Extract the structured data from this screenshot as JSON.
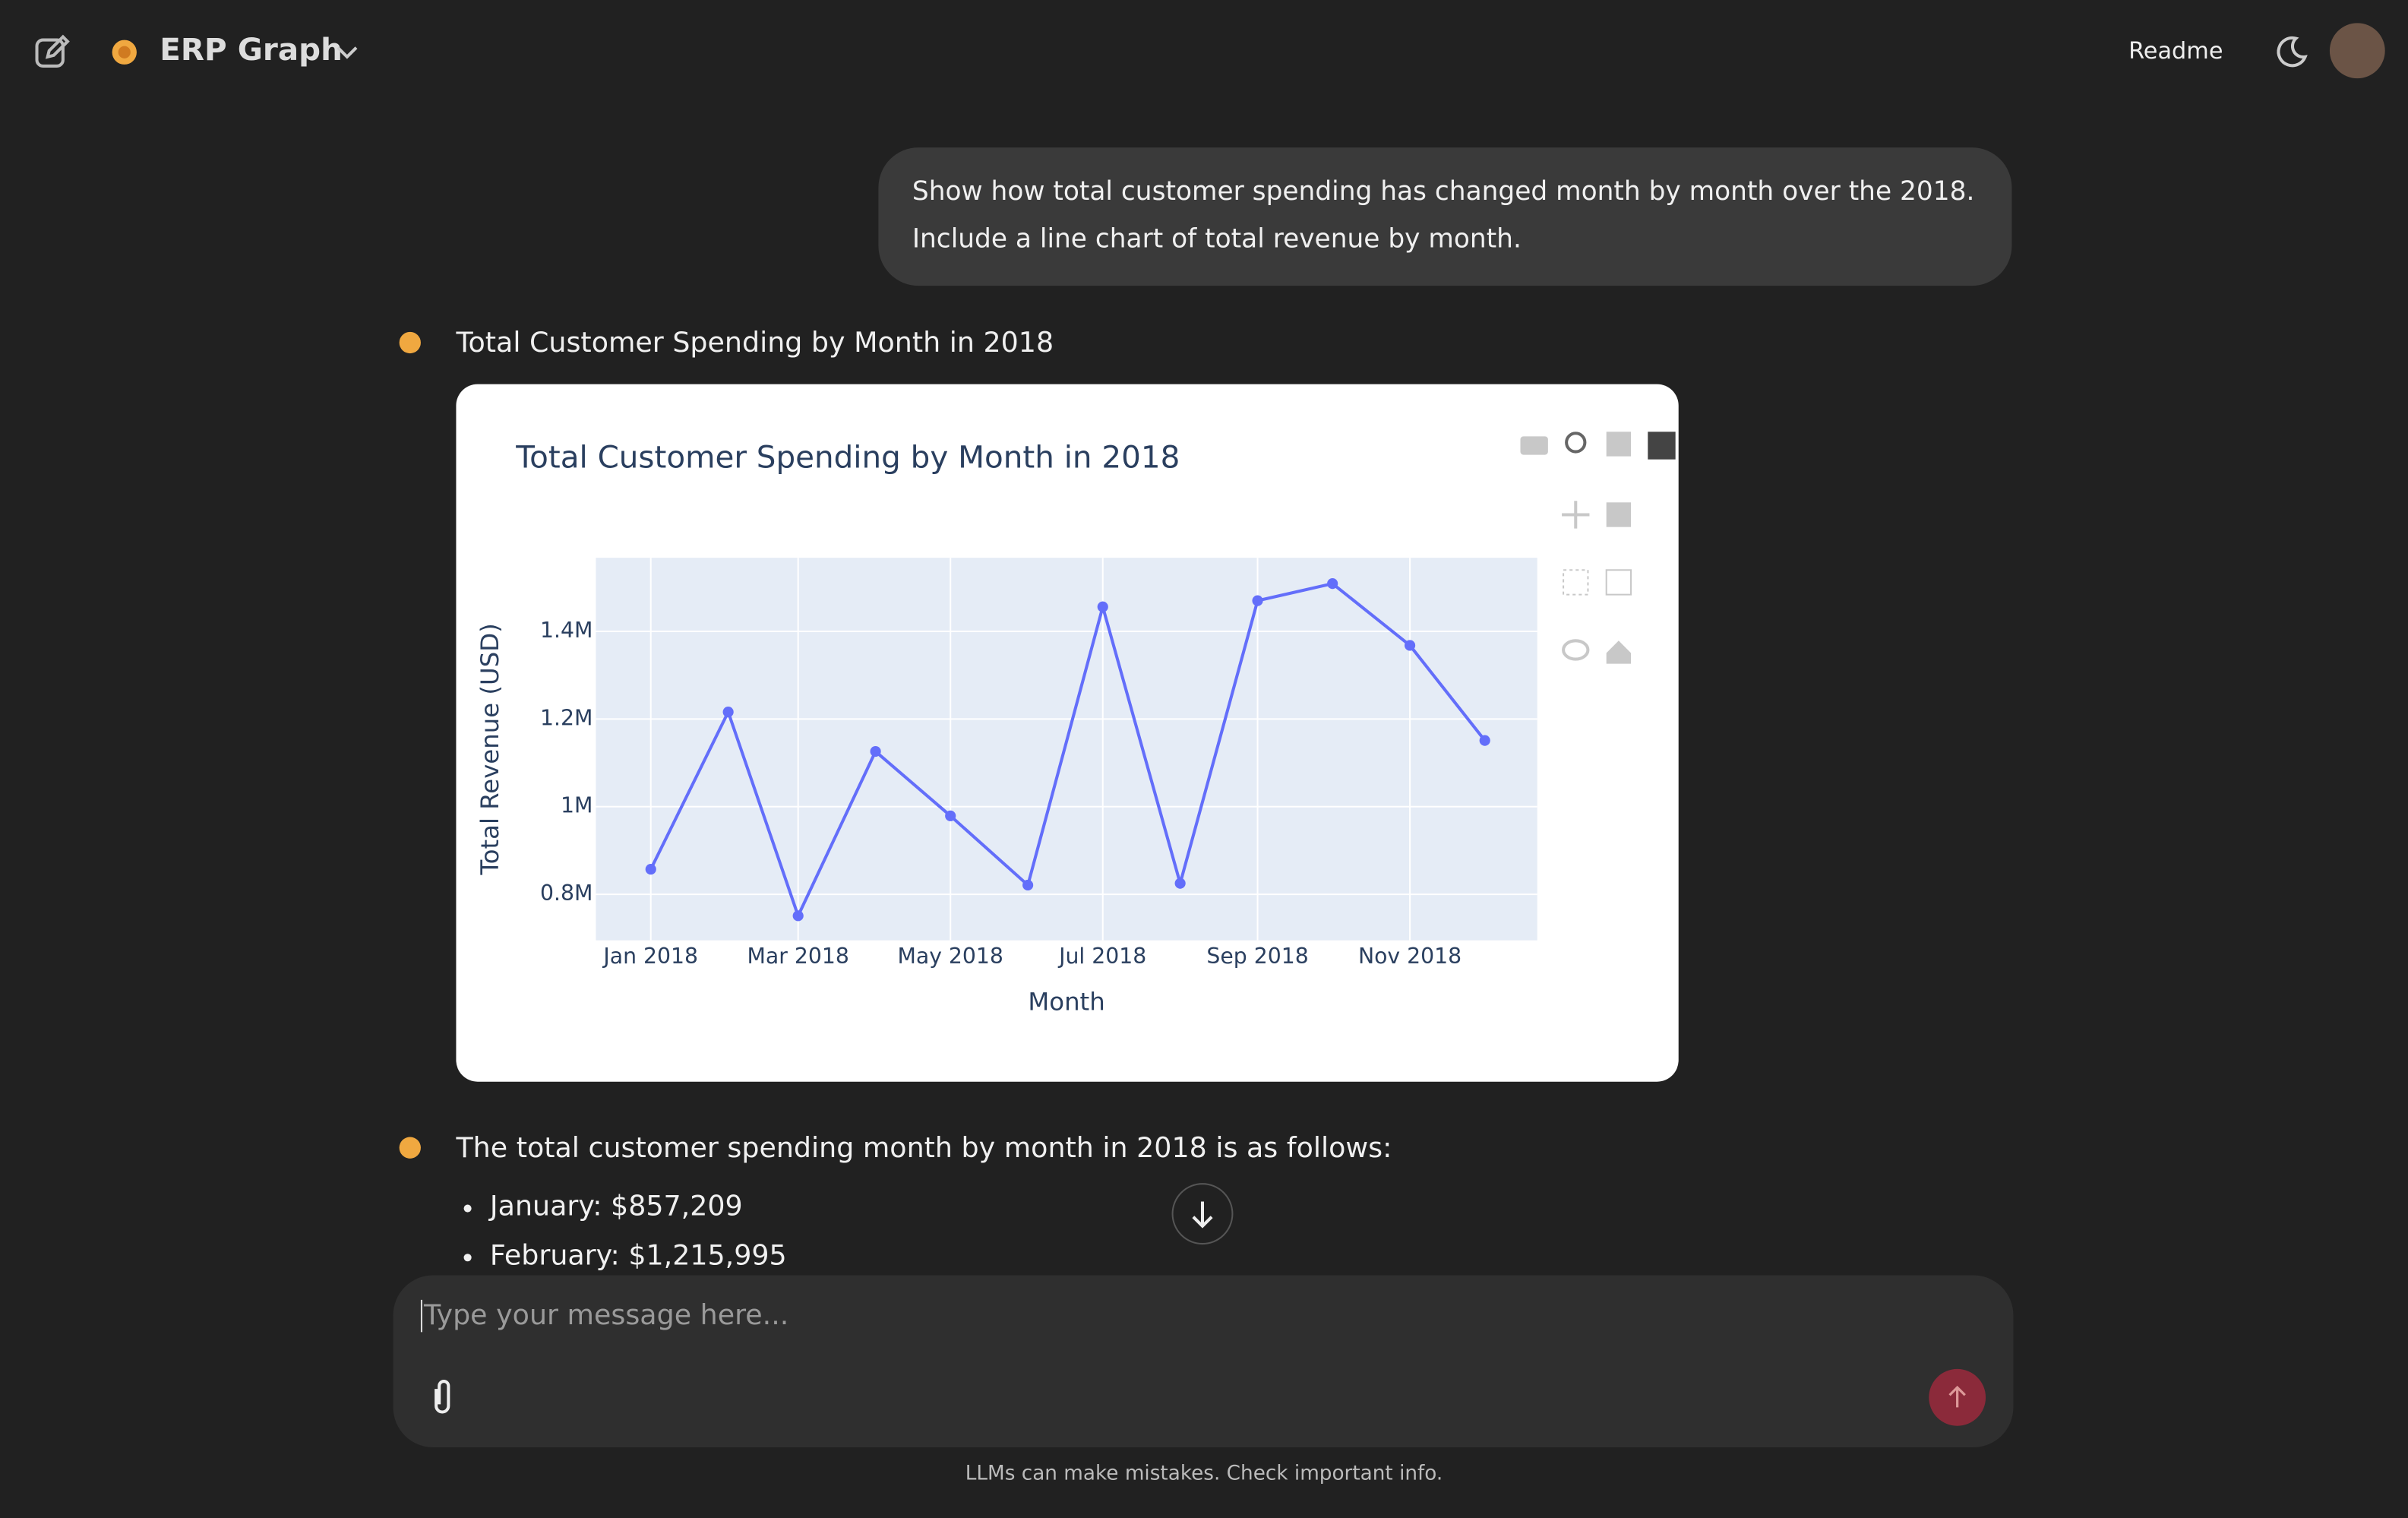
{
  "header": {
    "app_name": "ERP Graph",
    "readme": "Readme"
  },
  "user_message": "Show how total customer spending has changed month by month over the 2018. Include a line chart of total revenue by month.",
  "assistant_title": "Total Customer Spending by Month in 2018",
  "summary": "The total customer spending month by month in 2018 is as follows:",
  "list": [
    "January: $857,209",
    "February: $1,215,995"
  ],
  "input_placeholder": "Type your message here...",
  "footer": "LLMs can make mistakes. Check important info.",
  "chart_data": {
    "type": "line",
    "title": "Total Customer Spending by Month in 2018",
    "x_label": "Month",
    "y_label": "Total Revenue (USD)",
    "x": [
      "2018-01",
      "2018-02",
      "2018-03",
      "2018-04",
      "2018-05",
      "2018-06",
      "2018-07",
      "2018-08",
      "2018-09",
      "2018-10",
      "2018-11",
      "2018-12"
    ],
    "series": [
      {
        "name": "Total Revenue",
        "color": "#636efa",
        "values": [
          857209,
          1215995,
          751000,
          1126000,
          979000,
          821000,
          1456000,
          825000,
          1470000,
          1509000,
          1368000,
          1151000
        ]
      }
    ],
    "xlim": [
      "2017-12-10",
      "2018-12-22"
    ],
    "xticks": [
      {
        "value": "2018-01",
        "label": "Jan 2018"
      },
      {
        "value": "2018-03",
        "label": "Mar 2018"
      },
      {
        "value": "2018-05",
        "label": "May 2018"
      },
      {
        "value": "2018-07",
        "label": "Jul 2018"
      },
      {
        "value": "2018-09",
        "label": "Sep 2018"
      },
      {
        "value": "2018-11",
        "label": "Nov 2018"
      }
    ],
    "ylim": [
      695000,
      1568000
    ],
    "yticks": [
      {
        "value": 800000,
        "label": "0.8M"
      },
      {
        "value": 1000000,
        "label": "1M"
      },
      {
        "value": 1200000,
        "label": "1.2M"
      },
      {
        "value": 1400000,
        "label": "1.4M"
      }
    ],
    "grid": true,
    "plot_background": "#e5ecf6"
  }
}
